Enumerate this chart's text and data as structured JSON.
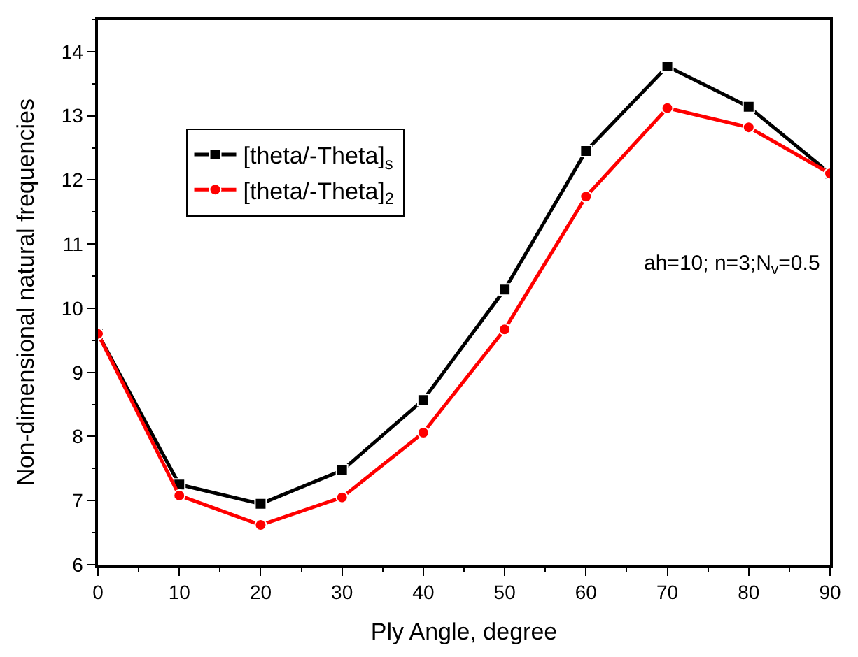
{
  "chart_data": {
    "type": "line",
    "xlabel": "Ply Angle, degree",
    "ylabel": "Non-dimensional natural frequencies",
    "x": [
      0,
      10,
      20,
      30,
      40,
      50,
      60,
      70,
      80,
      90
    ],
    "series": [
      {
        "name": "[theta/-Theta]$_{s}$",
        "color": "#000000",
        "marker": "square",
        "values": [
          9.6,
          7.25,
          6.95,
          7.47,
          8.57,
          10.29,
          12.45,
          13.77,
          13.14,
          12.1
        ]
      },
      {
        "name": "[theta/-Theta]$_{2}$",
        "color": "#ff0000",
        "marker": "circle",
        "values": [
          9.6,
          7.08,
          6.62,
          7.05,
          8.06,
          9.67,
          11.74,
          13.12,
          12.82,
          12.1
        ]
      }
    ],
    "xlim": [
      0,
      90
    ],
    "xticks": [
      0,
      10,
      20,
      30,
      40,
      50,
      60,
      70,
      80,
      90
    ],
    "ylim": [
      6,
      14.5
    ],
    "yticks": [
      6,
      7,
      8,
      9,
      10,
      11,
      12,
      13,
      14
    ],
    "annotations": [
      "ah=10; n=3;N$_{v}$=0.5"
    ],
    "legend": "top left",
    "line_style": "solid"
  }
}
